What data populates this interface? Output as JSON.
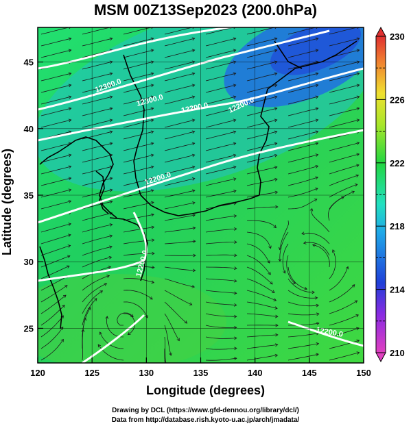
{
  "title": "MSM 00Z13Sep2023 (200.0hPa)",
  "xlabel": "Longitude (degrees)",
  "ylabel": "Latitude  (degrees)",
  "credits": [
    "Drawing by DCL (https://www.gfd-dennou.org/library/dcl/)",
    "Data from http://database.rish.kyoto-u.ac.jp/arch/jmadata/"
  ],
  "map": {
    "lon_range": [
      120,
      150
    ],
    "lat_range": [
      22.4,
      47.6
    ],
    "lon_ticks": [
      120,
      125,
      130,
      135,
      140,
      145,
      150
    ],
    "lat_ticks": [
      25,
      30,
      35,
      40,
      45
    ],
    "grid": true
  },
  "colorbar": {
    "range": [
      210,
      230
    ],
    "tick_labels": [
      210,
      214,
      218,
      222,
      226,
      230
    ],
    "colormap": "rainbow (magenta-blue-cyan-green-yellow-red)"
  },
  "contours": {
    "labels": [
      "12300.0",
      "12300.0",
      "12200.0",
      "12200.0",
      "12200.0",
      "12200.0",
      "12200.0"
    ]
  },
  "colors": {
    "background": "#ffffff",
    "field_main": "#22d640",
    "field_cool": "#1f7fe0",
    "contour": "#ffffff",
    "coast": "#000000",
    "streamline": "#1a1a1a"
  }
}
